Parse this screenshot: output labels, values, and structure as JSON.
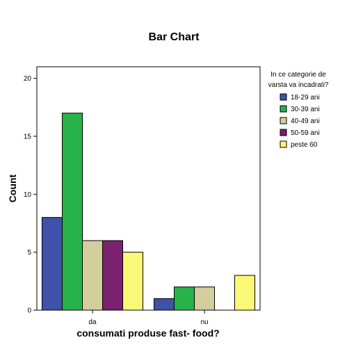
{
  "chart_data": {
    "type": "bar",
    "title": "Bar Chart",
    "xlabel": "consumati produse fast- food?",
    "ylabel": "Count",
    "categories": [
      "da",
      "nu"
    ],
    "ylim": [
      0,
      21
    ],
    "yticks": [
      0,
      5,
      10,
      15,
      20
    ],
    "grid": false,
    "legend": {
      "title_lines": [
        "In ce categorie de",
        "varsta va incadrati?"
      ],
      "placement": "right"
    },
    "series": [
      {
        "name": "18-29 ani",
        "color": "#3f51a8",
        "values": [
          8,
          1
        ]
      },
      {
        "name": "30-39 ani",
        "color": "#26b34a",
        "values": [
          17,
          2
        ]
      },
      {
        "name": "40-49 ani",
        "color": "#d4ce9c",
        "values": [
          6,
          2
        ]
      },
      {
        "name": "50-59 ani",
        "color": "#7a2170",
        "values": [
          6,
          0
        ]
      },
      {
        "name": "peste 60",
        "color": "#fbf878",
        "values": [
          5,
          3
        ]
      }
    ]
  }
}
